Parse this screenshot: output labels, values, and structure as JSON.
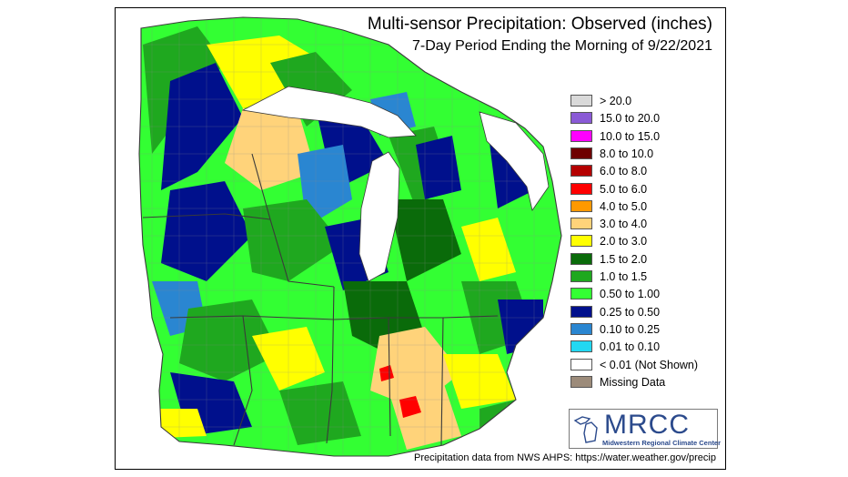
{
  "title": "Multi-sensor Precipitation: Observed (inches)",
  "subtitle": "7-Day Period Ending the Morning of 9/22/2021",
  "legend": [
    {
      "label": "> 20.0",
      "color": "#d9d9d9"
    },
    {
      "label": "15.0 to 20.0",
      "color": "#8a5ad6"
    },
    {
      "label": "10.0 to 15.0",
      "color": "#ff00ff"
    },
    {
      "label": "8.0 to 10.0",
      "color": "#6e0000"
    },
    {
      "label": "6.0 to 8.0",
      "color": "#b40000"
    },
    {
      "label": "5.0 to 6.0",
      "color": "#ff0000"
    },
    {
      "label": "4.0 to 5.0",
      "color": "#ff9900"
    },
    {
      "label": "3.0 to 4.0",
      "color": "#ffd37a"
    },
    {
      "label": "2.0 to 3.0",
      "color": "#ffff00"
    },
    {
      "label": "1.5 to 2.0",
      "color": "#0a6b0a"
    },
    {
      "label": "1.0 to 1.5",
      "color": "#1fa81f"
    },
    {
      "label": "0.50 to 1.00",
      "color": "#33ff33"
    },
    {
      "label": "0.25 to 0.50",
      "color": "#00108c"
    },
    {
      "label": "0.10 to 0.25",
      "color": "#2a86d1"
    },
    {
      "label": "0.01 to 0.10",
      "color": "#22d8f2"
    },
    {
      "label": "< 0.01 (Not Shown)",
      "color": "#ffffff"
    },
    {
      "label": "Missing Data",
      "color": "#9c8b7a"
    }
  ],
  "logo": {
    "text": "MRCC",
    "subtext": "Midwestern Regional Climate Center"
  },
  "credit": "Precipitation data from NWS AHPS: https://water.weather.gov/precip",
  "colors": {
    "lake": "#ffffff",
    "county_line": "#8a8a8a",
    "state_line": "#3a3a3a"
  }
}
